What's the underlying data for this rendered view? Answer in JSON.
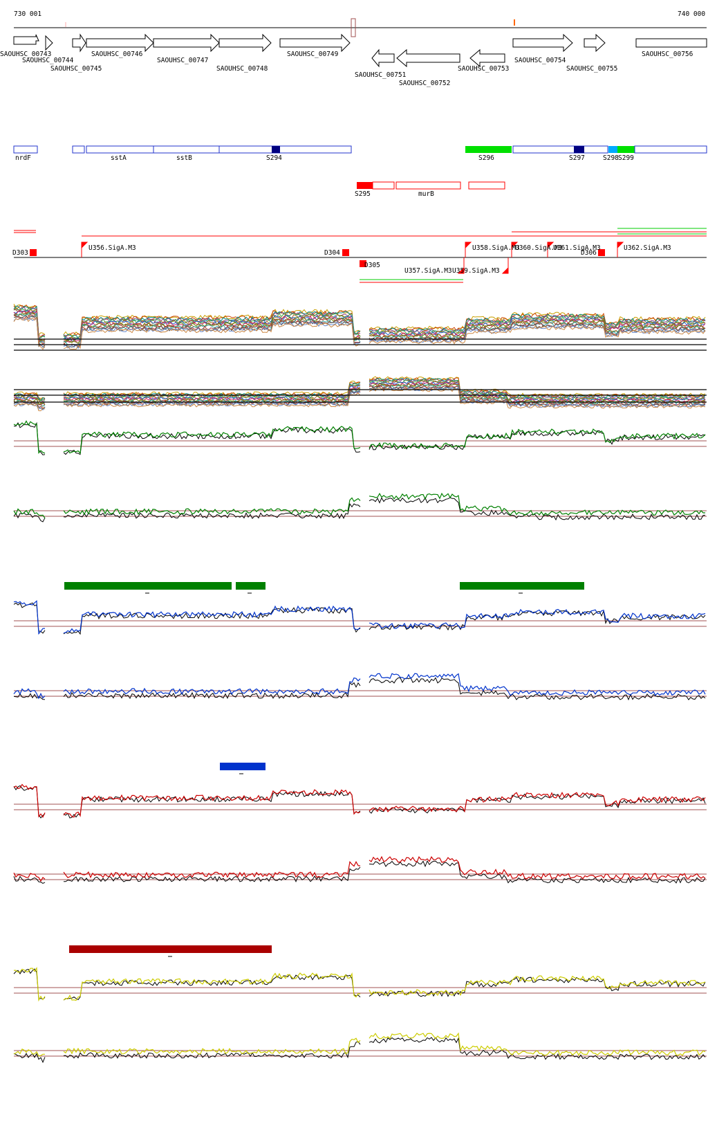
{
  "coords": {
    "start": "730 001",
    "end": "740 000"
  },
  "genes_top": [
    "SAOUHSC_00743",
    "SAOUHSC_00744",
    "SAOUHSC_00745",
    "SAOUHSC_00746",
    "SAOUHSC_00747",
    "SAOUHSC_00748",
    "SAOUHSC_00749",
    "SAOUHSC_00754",
    "SAOUHSC_00755",
    "SAOUHSC_00756"
  ],
  "genes_bottom": [
    "SAOUHSC_00751",
    "SAOUHSC_00752",
    "SAOUHSC_00753"
  ],
  "annotation_forward": [
    "nrdF",
    "sstA",
    "sstB",
    "S294",
    "S296",
    "S297",
    "S298",
    "S299"
  ],
  "annotation_reverse": [
    "S295",
    "murB"
  ],
  "promoters": [
    "D303",
    "U356.SigA.M3",
    "D304",
    "D305",
    "U357.SigA.M3",
    "U359.SigA.M3",
    "U358.SigA.M3",
    "U360.SigA.M3",
    "U361.SigA.M3",
    "D306",
    "U362.SigA.M3"
  ],
  "colors": {
    "gene_outline": "#000000",
    "annotation_blue": "#2233cc",
    "dark_blue": "#000080",
    "bright_green": "#00e000",
    "sky_blue": "#00aaff",
    "red": "#ff0000",
    "dark_green": "#008000",
    "blue_bar": "#0033cc",
    "dark_red": "#aa0000",
    "yellow": "#dddd00",
    "reference_line": "#a05050"
  },
  "condition_colors": [
    "#008000",
    "#0033cc",
    "#cc0000",
    "#cccc00"
  ]
}
